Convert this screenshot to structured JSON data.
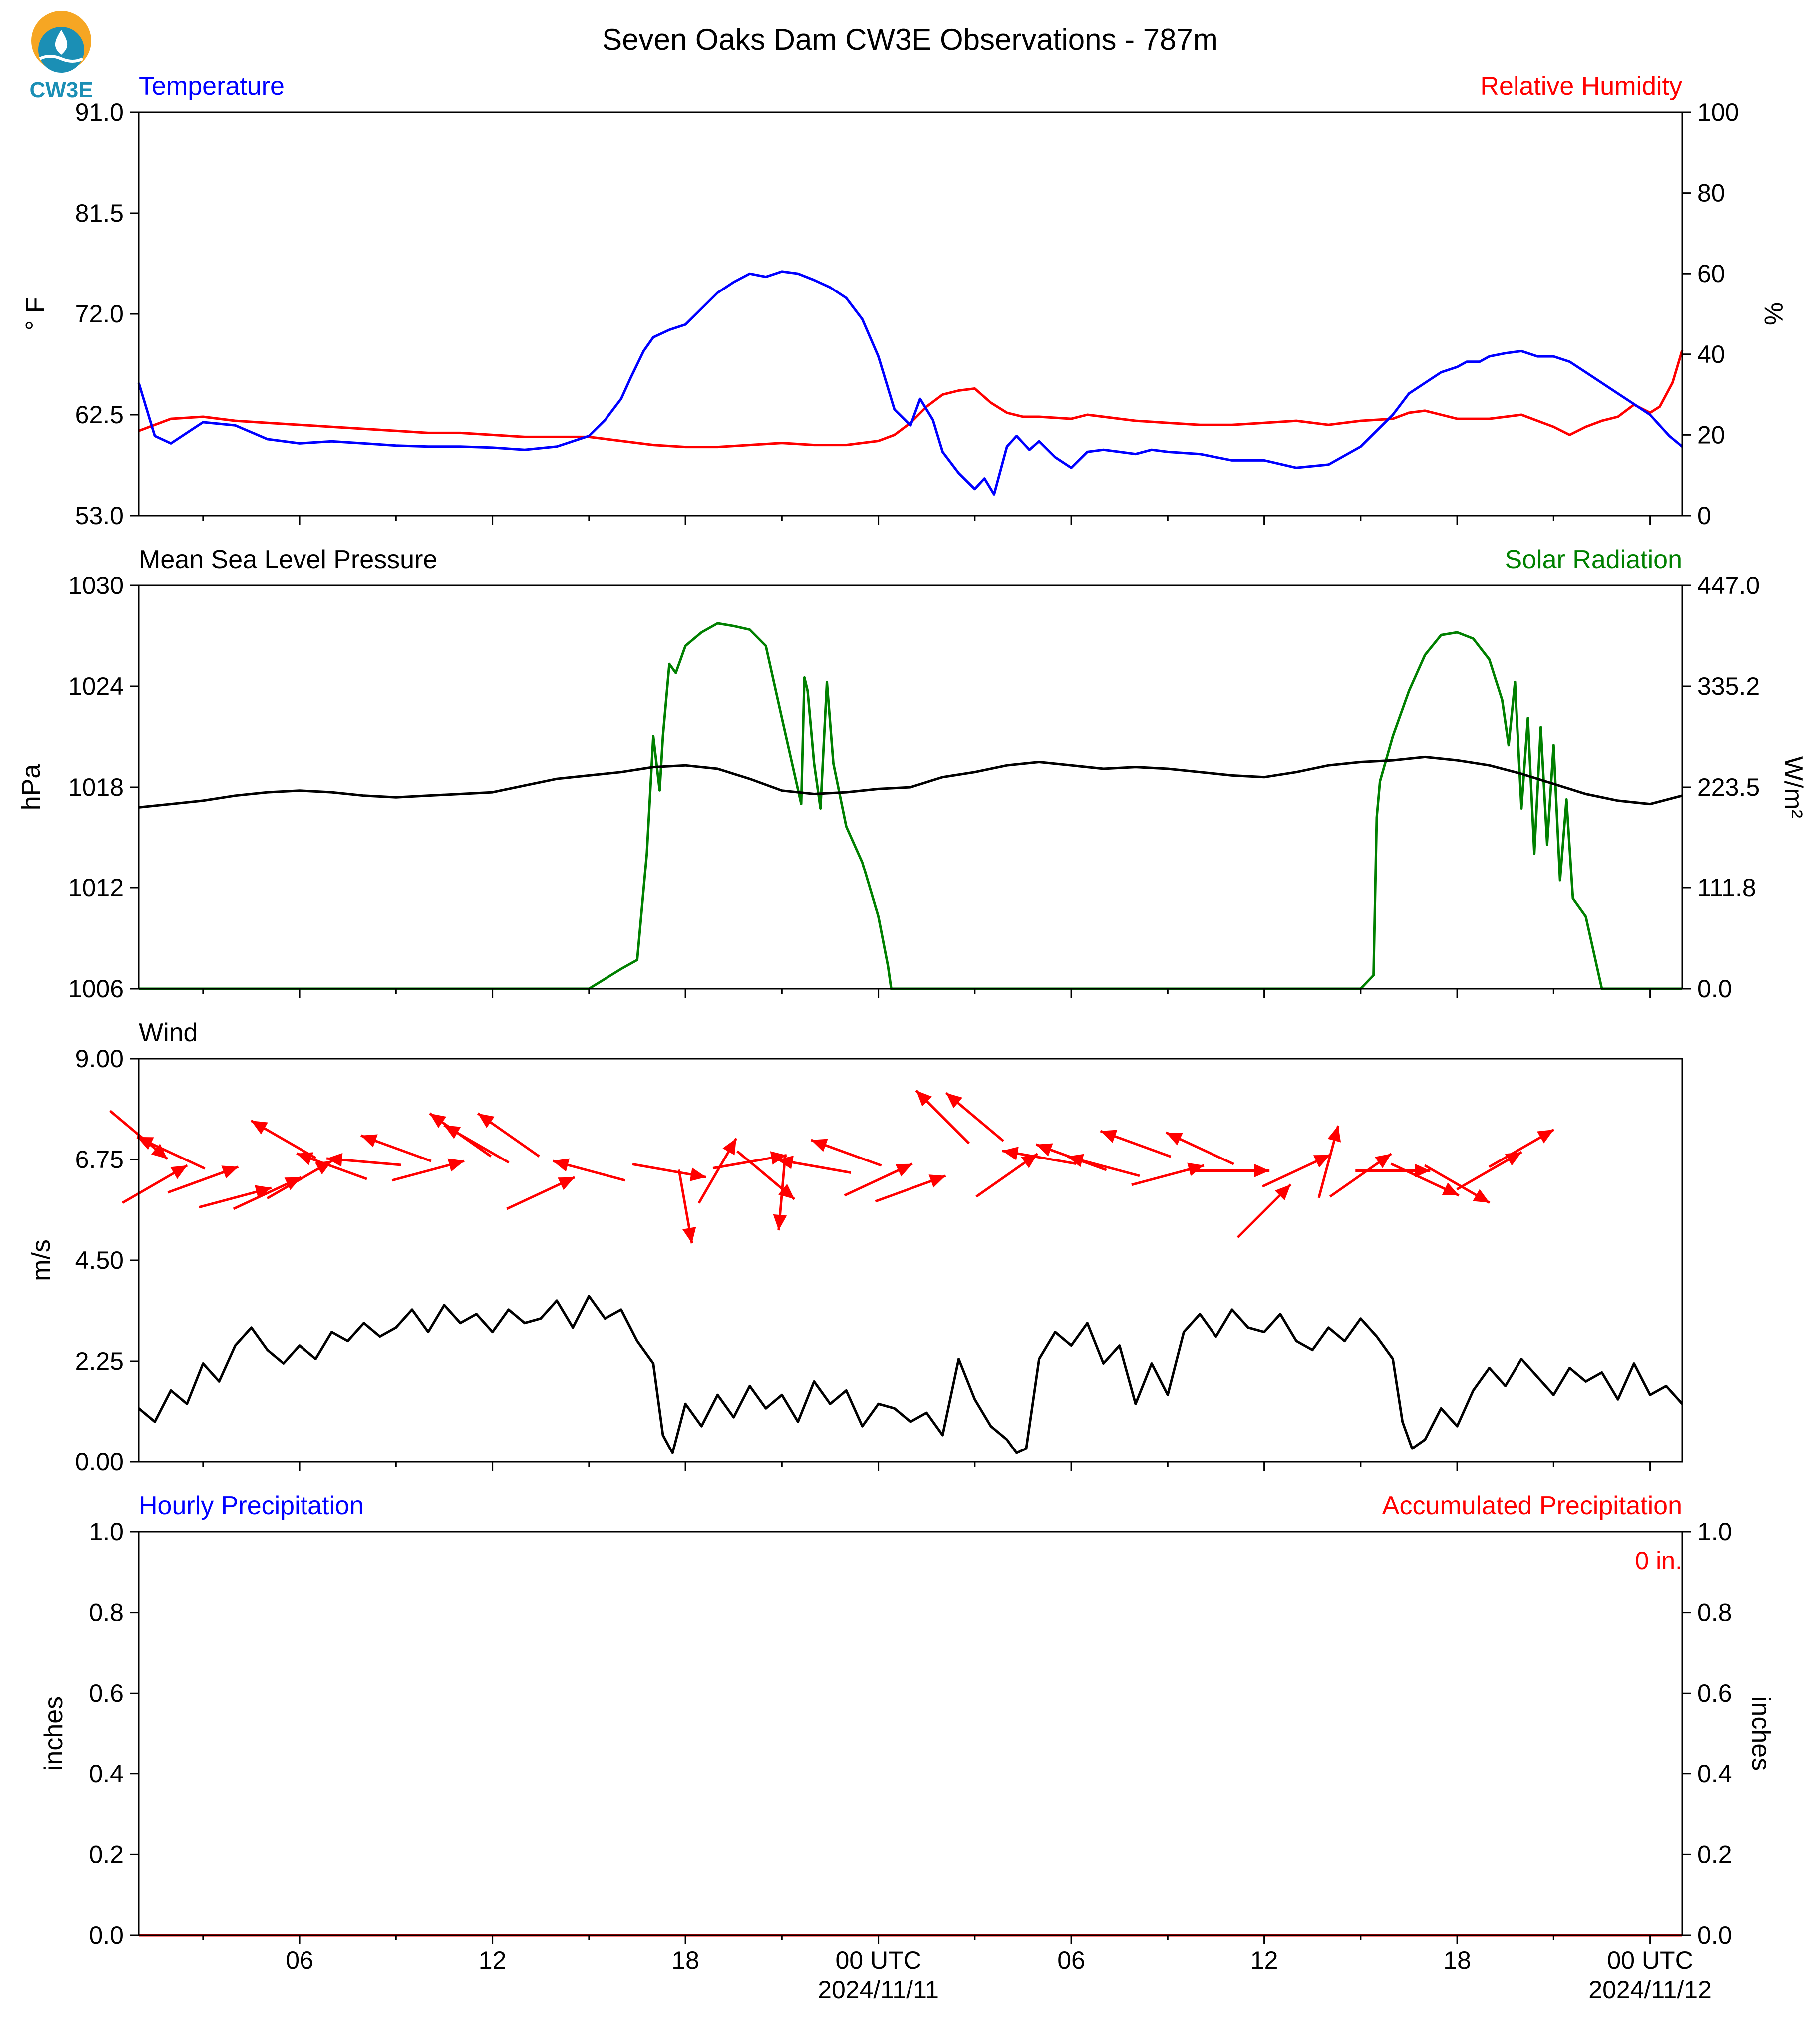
{
  "title": "Seven Oaks Dam CW3E Observations - 787m",
  "logo": {
    "text": "CW3E",
    "colors": [
      "#f6a623",
      "#1b8fb5"
    ]
  },
  "x_axis": {
    "start": "2024-11-10 01:00 UTC",
    "end": "2024-11-12 01:00 UTC",
    "ticks": [
      {
        "label": "06",
        "date": ""
      },
      {
        "label": "12",
        "date": ""
      },
      {
        "label": "18",
        "date": ""
      },
      {
        "label": "00 UTC",
        "date": "2024/11/11"
      },
      {
        "label": "06",
        "date": ""
      },
      {
        "label": "12",
        "date": ""
      },
      {
        "label": "18",
        "date": ""
      },
      {
        "label": "00 UTC",
        "date": "2024/11/12"
      }
    ]
  },
  "panels": {
    "temp": {
      "left_title": "Temperature",
      "left_color": "#0000ff",
      "right_title": "Relative Humidity",
      "right_color": "#ff0000",
      "left_label": "° F",
      "right_label": "%",
      "left_ticks": [
        "53.0",
        "62.5",
        "72.0",
        "81.5",
        "91.0"
      ],
      "right_ticks": [
        "0",
        "20",
        "40",
        "60",
        "80",
        "100"
      ]
    },
    "pres": {
      "left_title": "Mean Sea Level Pressure",
      "left_color": "#000000",
      "right_title": "Solar Radiation",
      "right_color": "#008000",
      "left_label": "hPa",
      "right_label": "W/m²",
      "left_ticks": [
        "1006",
        "1012",
        "1018",
        "1024",
        "1030"
      ],
      "right_ticks": [
        "0.0",
        "111.8",
        "223.5",
        "335.2",
        "447.0"
      ]
    },
    "wind": {
      "left_title": "Wind",
      "left_color": "#000000",
      "left_label": "m/s",
      "left_ticks": [
        "0.00",
        "2.25",
        "4.50",
        "6.75",
        "9.00"
      ]
    },
    "precip": {
      "left_title": "Hourly Precipitation",
      "left_color": "#0000ff",
      "right_title": "Accumulated Precipitation",
      "right_color": "#ff0000",
      "left_label": "inches",
      "right_label": "inches",
      "left_ticks": [
        "0.0",
        "0.2",
        "0.4",
        "0.6",
        "0.8",
        "1.0"
      ],
      "right_ticks": [
        "0.0",
        "0.2",
        "0.4",
        "0.6",
        "0.8",
        "1.0"
      ],
      "total_label": "0 in."
    }
  },
  "chart_data": [
    {
      "type": "line",
      "panel": "temp",
      "x_unit": "hours since 2024-11-10 00:00 UTC",
      "xlim": [
        1,
        49
      ],
      "ylim_left": [
        53.0,
        91.0
      ],
      "ylim_right": [
        0,
        100
      ],
      "series": [
        {
          "name": "Temperature",
          "axis": "left",
          "color": "#0000ff",
          "x": [
            1,
            1.5,
            2,
            3,
            4,
            5,
            6,
            7,
            8,
            9,
            10,
            11,
            12,
            13,
            14,
            15,
            15.5,
            16,
            16.3,
            16.7,
            17,
            17.5,
            18,
            18.5,
            19,
            19.5,
            20,
            20.5,
            21,
            21.5,
            22,
            22.5,
            23,
            23.5,
            24,
            24.5,
            25,
            25.3,
            25.7,
            26,
            26.5,
            27,
            27.3,
            27.6,
            28,
            28.3,
            28.7,
            29,
            29.5,
            30,
            30.5,
            31,
            31.5,
            32,
            32.5,
            33,
            34,
            35,
            36,
            37,
            38,
            39,
            40,
            40.5,
            41,
            41.5,
            42,
            42.3,
            42.7,
            43,
            43.5,
            44,
            44.5,
            45,
            45.5,
            46,
            46.5,
            47,
            47.5,
            48,
            48.3,
            48.6,
            49
          ],
          "y": [
            65.5,
            60.5,
            59.8,
            61.8,
            61.5,
            60.2,
            59.8,
            60,
            59.8,
            59.6,
            59.5,
            59.5,
            59.4,
            59.2,
            59.5,
            60.5,
            62,
            64,
            66,
            68.5,
            69.8,
            70.5,
            71,
            72.5,
            74,
            75,
            75.8,
            75.5,
            76,
            75.8,
            75.2,
            74.5,
            73.5,
            71.5,
            68,
            63,
            61.5,
            64,
            62,
            59,
            57,
            55.5,
            56.5,
            55,
            59.5,
            60.5,
            59.2,
            60,
            58.5,
            57.5,
            59,
            59.2,
            59,
            58.8,
            59.2,
            59,
            58.8,
            58.2,
            58.2,
            57.5,
            57.8,
            59.5,
            62.5,
            64.5,
            65.5,
            66.5,
            67,
            67.5,
            67.5,
            68,
            68.3,
            68.5,
            68,
            68,
            67.5,
            66.5,
            65.5,
            64.5,
            63.5,
            62.5,
            61.5,
            60.5,
            59.5
          ]
        },
        {
          "name": "Relative Humidity",
          "axis": "right",
          "color": "#ff0000",
          "x": [
            1,
            2,
            3,
            4,
            5,
            6,
            7,
            8,
            9,
            10,
            11,
            12,
            13,
            14,
            15,
            16,
            17,
            18,
            19,
            20,
            21,
            22,
            23,
            24,
            24.5,
            25,
            25.5,
            26,
            26.5,
            27,
            27.5,
            28,
            28.5,
            29,
            30,
            30.5,
            31,
            32,
            33,
            34,
            35,
            36,
            37,
            38,
            39,
            40,
            40.5,
            41,
            41.5,
            42,
            43,
            44,
            44.5,
            45,
            45.5,
            46,
            46.5,
            47,
            47.5,
            48,
            48.3,
            48.7,
            49
          ],
          "y": [
            21,
            24,
            24.5,
            23.5,
            23,
            22.5,
            22,
            21.5,
            21,
            20.5,
            20.5,
            20,
            19.5,
            19.5,
            19.5,
            18.5,
            17.5,
            17,
            17,
            17.5,
            18,
            17.5,
            17.5,
            18.5,
            20,
            23,
            27,
            30,
            31,
            31.5,
            28,
            25.5,
            24.5,
            24.5,
            24,
            25,
            24.5,
            23.5,
            23,
            22.5,
            22.5,
            23,
            23.5,
            22.5,
            23.5,
            24,
            25.5,
            26,
            25,
            24,
            24,
            25,
            23.5,
            22,
            20,
            22,
            23.5,
            24.5,
            27.5,
            25.5,
            27,
            33,
            41
          ]
        }
      ]
    },
    {
      "type": "line",
      "panel": "pres",
      "x_unit": "hours since 2024-11-10 00:00 UTC",
      "xlim": [
        1,
        49
      ],
      "ylim_left": [
        1006,
        1030
      ],
      "ylim_right": [
        0.0,
        447.0
      ],
      "series": [
        {
          "name": "Mean Sea Level Pressure",
          "axis": "left",
          "color": "#000000",
          "x": [
            1,
            2,
            3,
            4,
            5,
            6,
            7,
            8,
            9,
            10,
            11,
            12,
            13,
            14,
            15,
            16,
            17,
            18,
            19,
            20,
            21,
            22,
            23,
            24,
            25,
            26,
            27,
            28,
            29,
            30,
            31,
            32,
            33,
            34,
            35,
            36,
            37,
            38,
            39,
            40,
            41,
            42,
            43,
            44,
            45,
            46,
            47,
            48,
            49
          ],
          "y": [
            1016.8,
            1017,
            1017.2,
            1017.5,
            1017.7,
            1017.8,
            1017.7,
            1017.5,
            1017.4,
            1017.5,
            1017.6,
            1017.7,
            1018.1,
            1018.5,
            1018.7,
            1018.9,
            1019.2,
            1019.3,
            1019.1,
            1018.5,
            1017.8,
            1017.6,
            1017.7,
            1017.9,
            1018,
            1018.6,
            1018.9,
            1019.3,
            1019.5,
            1019.3,
            1019.1,
            1019.2,
            1019.1,
            1018.9,
            1018.7,
            1018.6,
            1018.9,
            1019.3,
            1019.5,
            1019.6,
            1019.8,
            1019.6,
            1019.3,
            1018.8,
            1018.2,
            1017.6,
            1017.2,
            1017,
            1017.5
          ]
        },
        {
          "name": "Solar Radiation",
          "axis": "right",
          "color": "#008000",
          "x": [
            1,
            14,
            15,
            16,
            16.5,
            16.8,
            17,
            17.2,
            17.3,
            17.5,
            17.7,
            18,
            18.5,
            19,
            19.5,
            20,
            20.5,
            21,
            21.6,
            21.7,
            21.8,
            22,
            22.2,
            22.4,
            22.6,
            23,
            23.5,
            24,
            24.3,
            24.4,
            25,
            38,
            39,
            39.4,
            39.5,
            39.6,
            40,
            40.5,
            41,
            41.5,
            42,
            42.5,
            43,
            43.4,
            43.6,
            43.8,
            44,
            44.2,
            44.4,
            44.6,
            44.8,
            45,
            45.2,
            45.4,
            45.6,
            46,
            46.5,
            46.6,
            46.7,
            47,
            49
          ],
          "y": [
            0,
            0,
            0,
            22,
            32,
            150,
            280,
            220,
            280,
            360,
            350,
            380,
            395,
            405,
            402,
            398,
            380,
            300,
            205,
            345,
            330,
            250,
            200,
            340,
            250,
            180,
            140,
            80,
            25,
            0,
            0,
            0,
            0,
            15,
            190,
            230,
            280,
            330,
            370,
            392,
            395,
            388,
            365,
            320,
            270,
            340,
            200,
            300,
            150,
            290,
            160,
            270,
            120,
            210,
            100,
            80,
            0,
            0,
            0,
            0,
            0
          ]
        }
      ]
    },
    {
      "type": "line",
      "panel": "wind",
      "x_unit": "hours since 2024-11-10 00:00 UTC",
      "xlim": [
        1,
        49
      ],
      "ylim": [
        0.0,
        9.0
      ],
      "series": [
        {
          "name": "",
          "color": "#000000",
          "x": [
            1,
            1.5,
            2,
            2.5,
            3,
            3.5,
            4,
            4.5,
            5,
            5.5,
            6,
            6.5,
            7,
            7.5,
            8,
            8.5,
            9,
            9.5,
            10,
            10.5,
            11,
            11.5,
            12,
            12.5,
            13,
            13.5,
            14,
            14.5,
            15,
            15.5,
            16,
            16.5,
            17,
            17.3,
            17.6,
            18,
            18.5,
            19,
            19.5,
            20,
            20.5,
            21,
            21.5,
            22,
            22.5,
            23,
            23.5,
            24,
            24.5,
            25,
            25.5,
            26,
            26.5,
            27,
            27.5,
            28,
            28.3,
            28.6,
            29,
            29.5,
            30,
            30.5,
            31,
            31.5,
            32,
            32.5,
            33,
            33.5,
            34,
            34.5,
            35,
            35.5,
            36,
            36.5,
            37,
            37.5,
            38,
            38.5,
            39,
            39.5,
            40,
            40.3,
            40.6,
            41,
            41.5,
            42,
            42.5,
            43,
            43.5,
            44,
            44.5,
            45,
            45.5,
            46,
            46.5,
            47,
            47.5,
            48,
            48.5,
            49
          ],
          "y": [
            1.2,
            0.9,
            1.6,
            1.3,
            2.2,
            1.8,
            2.6,
            3.0,
            2.5,
            2.2,
            2.6,
            2.3,
            2.9,
            2.7,
            3.1,
            2.8,
            3.0,
            3.4,
            2.9,
            3.5,
            3.1,
            3.3,
            2.9,
            3.4,
            3.1,
            3.2,
            3.6,
            3.0,
            3.7,
            3.2,
            3.4,
            2.7,
            2.2,
            0.6,
            0.2,
            1.3,
            0.8,
            1.5,
            1.0,
            1.7,
            1.2,
            1.5,
            0.9,
            1.8,
            1.3,
            1.6,
            0.8,
            1.3,
            1.2,
            0.9,
            1.1,
            0.6,
            2.3,
            1.4,
            0.8,
            0.5,
            0.2,
            0.3,
            2.3,
            2.9,
            2.6,
            3.1,
            2.2,
            2.6,
            1.3,
            2.2,
            1.5,
            2.9,
            3.3,
            2.8,
            3.4,
            3.0,
            2.9,
            3.3,
            2.7,
            2.5,
            3.0,
            2.7,
            3.2,
            2.8,
            2.3,
            0.9,
            0.3,
            0.5,
            1.2,
            0.8,
            1.6,
            2.1,
            1.7,
            2.3,
            1.9,
            1.5,
            2.1,
            1.8,
            2.0,
            1.4,
            2.2,
            1.5,
            1.7,
            1.3
          ]
        }
      ],
      "wind_barbs_note": "arrows: [hour, speed m/s, direction deg (towards, 0=east, CCW)]",
      "arrows": [
        [
          1,
          7.3,
          -40
        ],
        [
          1.5,
          6.2,
          30
        ],
        [
          2,
          6.9,
          155
        ],
        [
          3,
          6.3,
          20
        ],
        [
          4,
          5.9,
          15
        ],
        [
          5,
          6.0,
          25
        ],
        [
          5.5,
          7.2,
          150
        ],
        [
          6,
          6.3,
          30
        ],
        [
          7,
          6.6,
          160
        ],
        [
          8,
          6.7,
          175
        ],
        [
          9,
          7.0,
          160
        ],
        [
          10,
          6.5,
          15
        ],
        [
          11,
          7.3,
          145
        ],
        [
          11.5,
          7.1,
          150
        ],
        [
          12.5,
          7.3,
          145
        ],
        [
          13.5,
          6.0,
          25
        ],
        [
          15,
          6.5,
          165
        ],
        [
          17.5,
          6.5,
          -10
        ],
        [
          18,
          5.7,
          -80
        ],
        [
          19,
          6.5,
          60
        ],
        [
          20,
          6.7,
          10
        ],
        [
          20.5,
          6.4,
          -40
        ],
        [
          21,
          6.0,
          -95
        ],
        [
          22,
          6.6,
          170
        ],
        [
          23,
          6.9,
          160
        ],
        [
          24,
          6.3,
          25
        ],
        [
          25,
          6.1,
          20
        ],
        [
          26,
          7.7,
          135
        ],
        [
          27,
          7.7,
          140
        ],
        [
          28,
          6.4,
          35
        ],
        [
          29,
          6.8,
          170
        ],
        [
          30,
          6.8,
          160
        ],
        [
          31,
          6.6,
          165
        ],
        [
          32,
          7.1,
          160
        ],
        [
          33,
          6.4,
          15
        ],
        [
          34,
          7.0,
          155
        ],
        [
          35,
          6.5,
          0
        ],
        [
          36,
          5.6,
          45
        ],
        [
          37,
          6.5,
          25
        ],
        [
          38,
          6.7,
          75
        ],
        [
          39,
          6.4,
          35
        ],
        [
          40,
          6.5,
          0
        ],
        [
          41,
          6.3,
          -25
        ],
        [
          42,
          6.2,
          -30
        ],
        [
          43,
          6.5,
          30
        ],
        [
          44,
          7.0,
          30
        ]
      ]
    },
    {
      "type": "line",
      "panel": "precip",
      "x_unit": "hours since 2024-11-10 00:00 UTC",
      "xlim": [
        1,
        49
      ],
      "ylim_left": [
        0.0,
        1.0
      ],
      "ylim_right": [
        0.0,
        1.0
      ],
      "series": [
        {
          "name": "Hourly Precipitation",
          "axis": "left",
          "color": "#0000ff",
          "x": [
            1,
            49
          ],
          "y": [
            0,
            0
          ]
        },
        {
          "name": "Accumulated Precipitation",
          "axis": "right",
          "color": "#ff0000",
          "x": [
            1,
            49
          ],
          "y": [
            0,
            0
          ]
        }
      ]
    }
  ]
}
